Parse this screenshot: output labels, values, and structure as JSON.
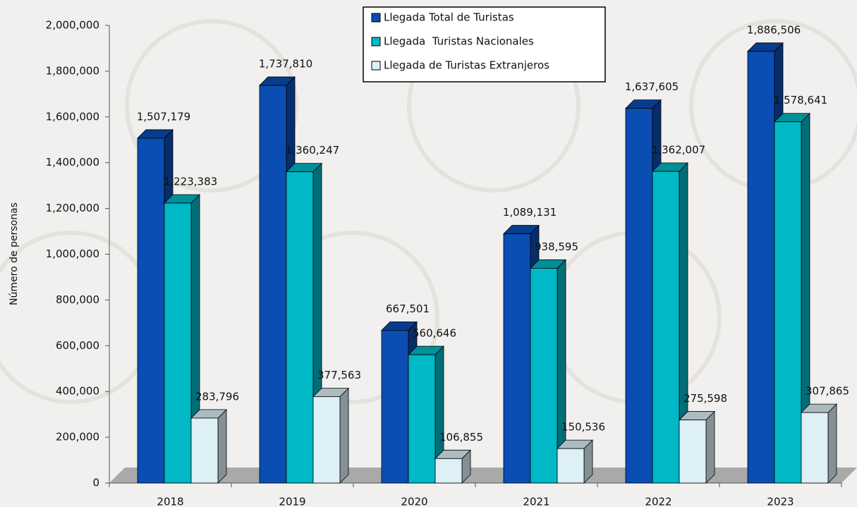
{
  "chart_data": {
    "type": "bar3d",
    "y_label": "Número de personas",
    "categories": [
      "2018",
      "2019",
      "2020",
      "2021",
      "2022",
      "2023"
    ],
    "series": [
      {
        "name": "Llegada Total de Turistas",
        "color": "#0a4db3",
        "values": [
          1507179,
          1737810,
          667501,
          1089131,
          1637605,
          1886506
        ],
        "value_labels": [
          "1,507,179",
          "1,737,810",
          "667,501",
          "1,089,131",
          "1,637,605",
          "1,886,506"
        ]
      },
      {
        "name": "Llegada  Turistas Nacionales",
        "color": "#00b8c6",
        "values": [
          1223383,
          1360247,
          560646,
          938595,
          1362007,
          1578641
        ],
        "value_labels": [
          "1,223,383",
          "1,360,247",
          "560,646",
          "938,595",
          "1,362,007",
          "1,578,641"
        ]
      },
      {
        "name": "Llegada de Turistas Extranjeros",
        "color": "#dcf0f6",
        "values": [
          283796,
          377563,
          106855,
          150536,
          275598,
          307865
        ],
        "value_labels": [
          "283,796",
          "377,563",
          "106,855",
          "150,536",
          "275,598",
          "307,865"
        ]
      }
    ],
    "ylim": [
      0,
      2000000
    ],
    "yticks": [
      0,
      {
        "value": 200000,
        "label": "200,000"
      },
      {
        "value": 400000,
        "label": "400,000"
      },
      {
        "value": 600000,
        "label": "600,000"
      },
      {
        "value": 800000,
        "label": "800,000"
      },
      {
        "value": 1000000,
        "label": "1,000,000"
      },
      {
        "value": 1200000,
        "label": "1,200,000"
      },
      {
        "value": 1400000,
        "label": "1,400,000"
      },
      {
        "value": 1600000,
        "label": "1,600,000"
      },
      {
        "value": 1800000,
        "label": "1,800,000"
      },
      {
        "value": 2000000,
        "label": "2,000,000"
      }
    ],
    "legend": "top"
  }
}
